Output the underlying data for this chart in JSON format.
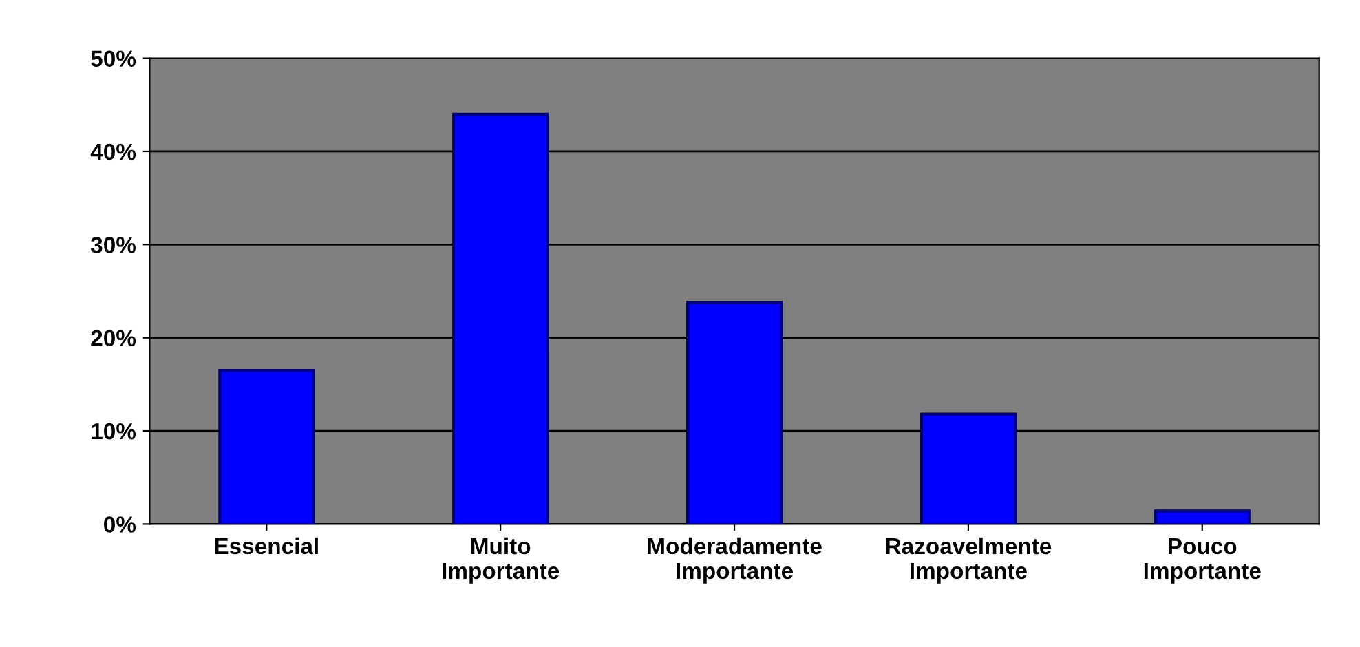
{
  "chart_data": {
    "type": "bar",
    "categories": [
      "Essencial",
      "Muito\nImportante",
      "Moderadamente\nImportante",
      "Razoavelmente\nImportante",
      "Pouco\nImportante"
    ],
    "values": [
      16.5,
      44,
      23.8,
      11.8,
      1.4
    ],
    "color": "#0000ff",
    "ylim": [
      0,
      50
    ],
    "yticks": [
      {
        "value": 0,
        "label": "0%"
      },
      {
        "value": 10,
        "label": "10%"
      },
      {
        "value": 20,
        "label": "20%"
      },
      {
        "value": 30,
        "label": "30%"
      },
      {
        "value": 40,
        "label": "40%"
      },
      {
        "value": 50,
        "label": "50%"
      }
    ],
    "grid": "y",
    "legend": false
  }
}
